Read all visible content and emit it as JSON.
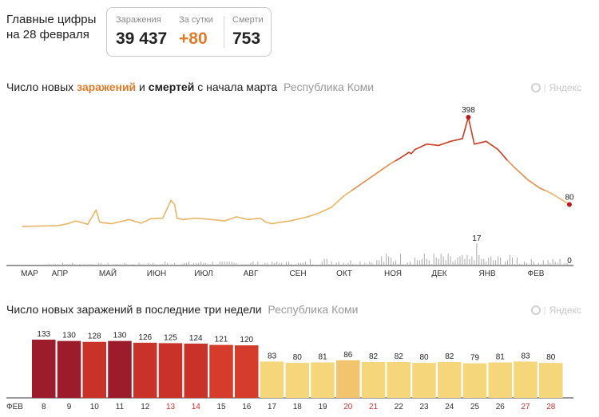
{
  "header": {
    "title_line1": "Главные цифры",
    "title_line2": "на 28 февраля",
    "stats": {
      "infections_label": "Заражения",
      "infections_value": "39 437",
      "daily_label": "За сутки",
      "daily_value": "+80",
      "deaths_label": "Смерти",
      "deaths_value": "753"
    }
  },
  "branding": {
    "logo_text": "Яндекс"
  },
  "chart1_title": {
    "prefix": "Число новых ",
    "infections_word": "заражений",
    "and": " и ",
    "deaths_word": "смертей",
    "suffix": " с начала марта",
    "region": "Республика Коми"
  },
  "chart2_title": {
    "text": "Число новых заражений в последние три недели",
    "region": "Республика Коми"
  },
  "colors": {
    "line_light": "#e8b86a",
    "line_mid": "#e49050",
    "line_dark": "#c74128",
    "peak_dot": "#b71c1c",
    "death_bar": "#a9a9a9",
    "bar_dark": "#9d1c2c",
    "bar_red": "#c83228",
    "bar_orange_red": "#d63c2b",
    "bar_yellow": "#f5d67a",
    "bar_highlight": "#f2c46d",
    "weekend_label": "#d32f2f"
  },
  "chart_data": [
    {
      "type": "line",
      "title": "Число новых заражений и смертей с начала марта",
      "x_tick_labels": [
        "МАР",
        "АПР",
        "МАЙ",
        "ИЮН",
        "ИЮЛ",
        "АВГ",
        "СЕН",
        "ОКТ",
        "НОЯ",
        "ДЕК",
        "ЯНВ",
        "ФЕВ"
      ],
      "infections_series": {
        "name": "Заражения",
        "day_index": [
          0,
          30,
          38,
          45,
          55,
          60,
          62,
          65,
          75,
          90,
          95,
          100,
          108,
          118,
          125,
          128,
          130,
          135,
          145,
          160,
          170,
          180,
          190,
          200,
          205,
          210,
          215,
          225,
          240,
          250,
          260,
          270,
          280,
          290,
          300,
          310,
          318,
          325,
          327,
          330,
          340,
          350,
          360,
          370,
          375,
          380,
          390,
          400,
          408,
          415,
          425,
          435,
          445,
          460
        ],
        "values": [
          0,
          3,
          10,
          20,
          8,
          45,
          60,
          15,
          10,
          25,
          18,
          12,
          28,
          30,
          95,
          80,
          30,
          25,
          30,
          25,
          20,
          35,
          25,
          30,
          15,
          10,
          14,
          20,
          35,
          50,
          70,
          110,
          140,
          170,
          200,
          230,
          250,
          270,
          265,
          280,
          300,
          295,
          310,
          320,
          398,
          300,
          310,
          280,
          240,
          210,
          170,
          140,
          120,
          80
        ],
        "peak_label": "398",
        "last_label": "80"
      },
      "deaths_series": {
        "name": "Смерти",
        "max_label": "17",
        "last_label": "0"
      }
    },
    {
      "type": "bar",
      "title": "Число новых заражений в последние три недели",
      "month_label": "ФЕВ",
      "categories": [
        "8",
        "9",
        "10",
        "11",
        "12",
        "13",
        "14",
        "15",
        "16",
        "17",
        "18",
        "19",
        "20",
        "21",
        "22",
        "23",
        "24",
        "25",
        "26",
        "27",
        "28"
      ],
      "values": [
        133,
        130,
        128,
        130,
        126,
        125,
        124,
        121,
        120,
        83,
        80,
        81,
        86,
        82,
        82,
        80,
        82,
        79,
        81,
        83,
        80
      ],
      "weekend_days": [
        "13",
        "14",
        "20",
        "21",
        "27",
        "28"
      ],
      "highlight_day": "20"
    }
  ]
}
